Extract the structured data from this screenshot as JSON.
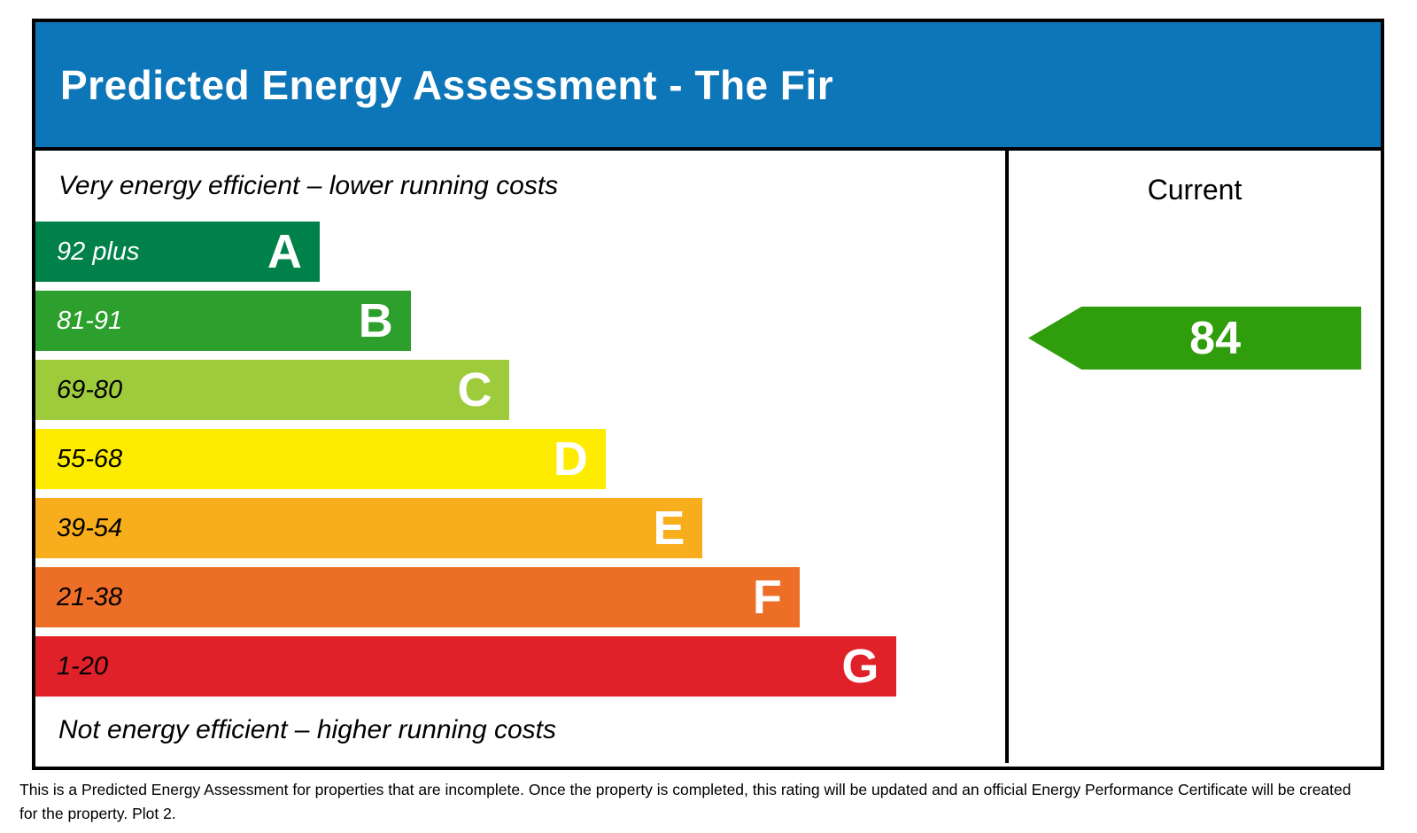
{
  "header": {
    "title": "Predicted Energy Assessment - The Fir",
    "bg_color": "#0d76b8",
    "text_color": "#ffffff"
  },
  "chart_data": {
    "type": "bar",
    "title": "Predicted Energy Assessment - The Fir",
    "top_caption": "Very energy efficient – lower running costs",
    "bottom_caption": "Not energy efficient – higher running costs",
    "bands": [
      {
        "letter": "A",
        "range": "92 plus",
        "score_min": 92,
        "score_max": 100,
        "color": "#008149",
        "range_text_color": "#ffffff",
        "width_pct": 29.3
      },
      {
        "letter": "B",
        "range": "81-91",
        "score_min": 81,
        "score_max": 91,
        "color": "#2c9f2d",
        "range_text_color": "#ffffff",
        "width_pct": 38.7
      },
      {
        "letter": "C",
        "range": "69-80",
        "score_min": 69,
        "score_max": 80,
        "color": "#9ecb3c",
        "range_text_color": "#000000",
        "width_pct": 48.9
      },
      {
        "letter": "D",
        "range": "55-68",
        "score_min": 55,
        "score_max": 68,
        "color": "#fdec00",
        "range_text_color": "#000000",
        "width_pct": 58.8
      },
      {
        "letter": "E",
        "range": "39-54",
        "score_min": 39,
        "score_max": 54,
        "color": "#f8ad1d",
        "range_text_color": "#000000",
        "width_pct": 68.8
      },
      {
        "letter": "F",
        "range": "21-38",
        "score_min": 21,
        "score_max": 38,
        "color": "#ed6e26",
        "range_text_color": "#000000",
        "width_pct": 78.8
      },
      {
        "letter": "G",
        "range": "1-20",
        "score_min": 1,
        "score_max": 20,
        "color": "#e02129",
        "range_text_color": "#000000",
        "width_pct": 88.8
      }
    ],
    "current": {
      "label": "Current",
      "value": 84,
      "band": "B",
      "arrow_color": "#2f9d0c"
    },
    "legend_position": "right",
    "grid": false
  },
  "footer": {
    "text": "This is a Predicted Energy Assessment for properties that are incomplete. Once the property is completed, this rating will be updated and an official Energy Performance Certificate will be created for the property. Plot 2."
  }
}
